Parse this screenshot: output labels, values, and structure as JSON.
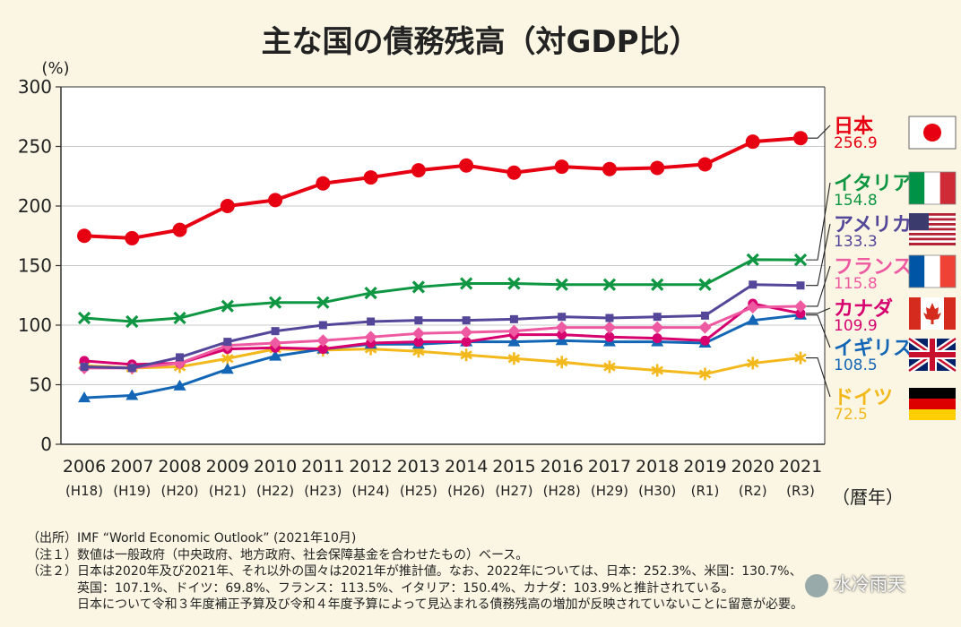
{
  "chart_data": {
    "type": "line",
    "title": "主な国の債務残高（対GDP比）",
    "ylabel": "(%)",
    "xlabel": "（暦年）",
    "ylim": [
      0,
      300
    ],
    "yticks": [
      "0",
      "50",
      "100",
      "150",
      "200",
      "250",
      "300"
    ],
    "categories": [
      "2006",
      "2007",
      "2008",
      "2009",
      "2010",
      "2011",
      "2012",
      "2013",
      "2014",
      "2015",
      "2016",
      "2017",
      "2018",
      "2019",
      "2020",
      "2021"
    ],
    "era_labels": [
      "(H18)",
      "(H19)",
      "(H20)",
      "(H21)",
      "(H22)",
      "(H23)",
      "(H24)",
      "(H25)",
      "(H26)",
      "(H27)",
      "(H28)",
      "(H29)",
      "(H30)",
      "(R1)",
      "(R2)",
      "(R3)"
    ],
    "series": [
      {
        "name": "日本",
        "value_label": "256.9",
        "color": "#e60012",
        "marker": "circle",
        "values": [
          175,
          173,
          180,
          200,
          205,
          219,
          224,
          230,
          234,
          228,
          233,
          231,
          232,
          235,
          254,
          257
        ]
      },
      {
        "name": "イタリア",
        "value_label": "154.8",
        "color": "#0e9642",
        "marker": "x",
        "values": [
          106,
          103,
          106,
          116,
          119,
          119,
          127,
          132,
          135,
          135,
          134,
          134,
          134,
          134,
          155,
          154.8
        ]
      },
      {
        "name": "アメリカ",
        "value_label": "133.3",
        "color": "#54479a",
        "marker": "square",
        "values": [
          65,
          64,
          73,
          86,
          95,
          100,
          103,
          104,
          104,
          105,
          107,
          106,
          107,
          108,
          134,
          133.3
        ]
      },
      {
        "name": "フランス",
        "value_label": "115.8",
        "color": "#ee5aa1",
        "marker": "diamond",
        "values": [
          64,
          64,
          68,
          83,
          85,
          87,
          90,
          93,
          94,
          95,
          98,
          98,
          98,
          98,
          115,
          115.8
        ]
      },
      {
        "name": "カナダ",
        "value_label": "109.9",
        "color": "#d6006f",
        "marker": "circle-small",
        "values": [
          70,
          67,
          68,
          80,
          81,
          80,
          85,
          86,
          86,
          92,
          92,
          90,
          89,
          87,
          118,
          109.9
        ]
      },
      {
        "name": "イギリス",
        "value_label": "108.5",
        "color": "#1366b5",
        "marker": "triangle",
        "values": [
          39,
          41,
          49,
          63,
          74,
          80,
          84,
          84,
          86,
          86,
          87,
          86,
          86,
          85,
          104,
          108.5
        ]
      },
      {
        "name": "ドイツ",
        "value_label": "72.5",
        "color": "#f3b81b",
        "marker": "plus",
        "values": [
          66,
          64,
          65,
          72,
          80,
          79,
          80,
          78,
          75,
          72,
          69,
          65,
          62,
          59,
          68,
          72.5
        ]
      }
    ]
  },
  "notes": [
    "（出所）IMF “World Economic Outlook” (2021年10月)",
    "（注１）数値は一般政府（中央政府、地方政府、社会保障基金を合わせたもの）ベース。",
    "（注２）日本は2020年及び2021年、それ以外の国々は2021年が推計値。なお、2022年については、日本：252.3%、米国：130.7%、",
    "　　　　英国：107.1%、ドイツ：69.8%、フランス：113.5%、イタリア：150.4%、カナダ：103.9%と推計されている。",
    "　　　　日本について令和３年度補正予算及び令和４年度予算によって見込まれる債務残高の増加が反映されていないことに留意が必要。"
  ],
  "watermark": "水冷雨天"
}
